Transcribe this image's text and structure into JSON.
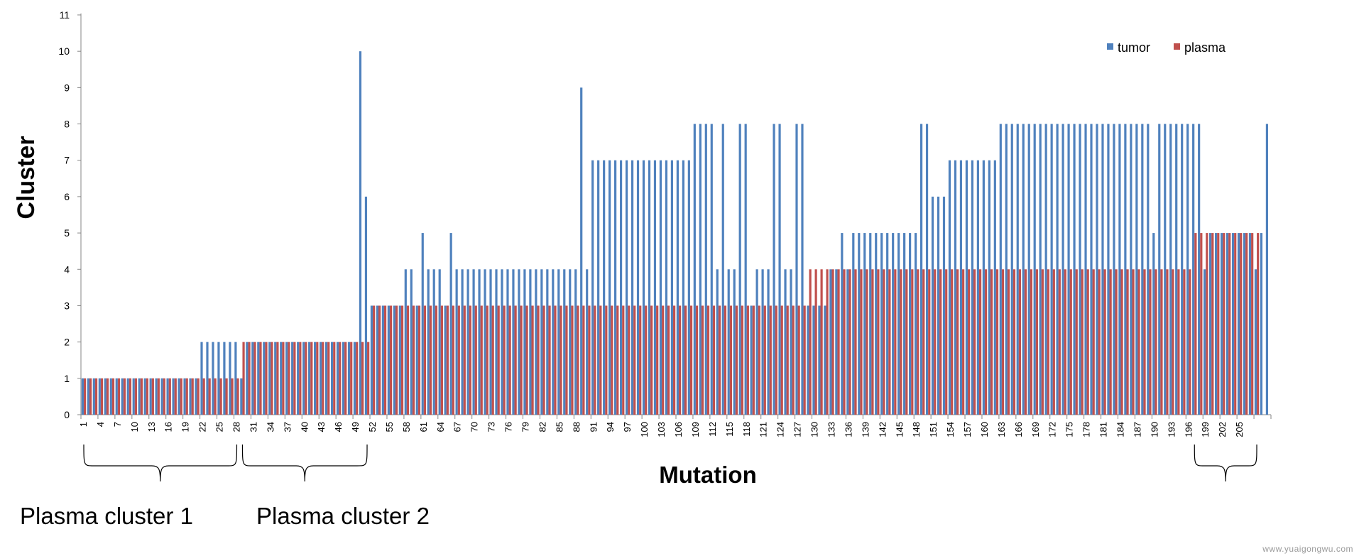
{
  "chart_data": {
    "type": "bar",
    "xlabel": "Mutation",
    "ylabel": "Cluster",
    "ylim": [
      0,
      11
    ],
    "yticks": [
      0,
      1,
      2,
      3,
      4,
      5,
      6,
      7,
      8,
      9,
      10,
      11
    ],
    "xtick_labels": [
      "1",
      "4",
      "7",
      "10",
      "13",
      "16",
      "19",
      "22",
      "25",
      "28",
      "31",
      "34",
      "37",
      "40",
      "43",
      "46",
      "49",
      "52",
      "55",
      "58",
      "61",
      "64",
      "67",
      "70",
      "73",
      "76",
      "79",
      "82",
      "85",
      "88",
      "91",
      "94",
      "97",
      "100",
      "103",
      "106",
      "109",
      "112",
      "115",
      "118",
      "121",
      "124",
      "127",
      "130",
      "133",
      "136",
      "139",
      "142",
      "145",
      "148",
      "151",
      "154",
      "157",
      "160",
      "163",
      "166",
      "169",
      "172",
      "175",
      "178",
      "181",
      "184",
      "187",
      "190",
      "193",
      "196",
      "199",
      "202",
      "205"
    ],
    "legend": {
      "position": "top-right",
      "entries": [
        "tumor",
        "plasma"
      ]
    },
    "colors": {
      "tumor": "#4f81bd",
      "plasma": "#c0504d"
    },
    "series": [
      {
        "name": "tumor",
        "values": [
          1,
          1,
          1,
          1,
          1,
          1,
          1,
          1,
          1,
          1,
          1,
          1,
          1,
          1,
          1,
          1,
          1,
          1,
          1,
          1,
          1,
          2,
          2,
          2,
          2,
          2,
          2,
          2,
          1,
          2,
          2,
          2,
          2,
          2,
          2,
          2,
          2,
          2,
          2,
          2,
          2,
          2,
          2,
          2,
          2,
          2,
          2,
          2,
          2,
          10,
          6,
          3,
          3,
          3,
          3,
          3,
          3,
          4,
          4,
          3,
          5,
          4,
          4,
          4,
          3,
          5,
          4,
          4,
          4,
          4,
          4,
          4,
          4,
          4,
          4,
          4,
          4,
          4,
          4,
          4,
          4,
          4,
          4,
          4,
          4,
          4,
          4,
          4,
          9,
          4,
          7,
          7,
          7,
          7,
          7,
          7,
          7,
          7,
          7,
          7,
          7,
          7,
          7,
          7,
          7,
          7,
          7,
          7,
          8,
          8,
          8,
          8,
          4,
          8,
          4,
          4,
          8,
          8,
          3,
          4,
          4,
          4,
          8,
          8,
          4,
          4,
          8,
          8,
          3,
          3,
          3,
          3,
          4,
          4,
          5,
          4,
          5,
          5,
          5,
          5,
          5,
          5,
          5,
          5,
          5,
          5,
          5,
          5,
          8,
          8,
          6,
          6,
          6,
          7,
          7,
          7,
          7,
          7,
          7,
          7,
          7,
          7,
          8,
          8,
          8,
          8,
          8,
          8,
          8,
          8,
          8,
          8,
          8,
          8,
          8,
          8,
          8,
          8,
          8,
          8,
          8,
          8,
          8,
          8,
          8,
          8,
          8,
          8,
          8,
          5,
          8,
          8,
          8,
          8,
          8,
          8,
          8,
          8,
          4,
          5,
          5,
          5,
          5,
          5,
          5,
          5,
          5,
          4,
          5,
          8
        ]
      },
      {
        "name": "plasma",
        "values": [
          1,
          1,
          1,
          1,
          1,
          1,
          1,
          1,
          1,
          1,
          1,
          1,
          1,
          1,
          1,
          1,
          1,
          1,
          1,
          1,
          1,
          1,
          1,
          1,
          1,
          1,
          1,
          1,
          2,
          2,
          2,
          2,
          2,
          2,
          2,
          2,
          2,
          2,
          2,
          2,
          2,
          2,
          2,
          2,
          2,
          2,
          2,
          2,
          2,
          2,
          2,
          3,
          3,
          3,
          3,
          3,
          3,
          3,
          3,
          3,
          3,
          3,
          3,
          3,
          3,
          3,
          3,
          3,
          3,
          3,
          3,
          3,
          3,
          3,
          3,
          3,
          3,
          3,
          3,
          3,
          3,
          3,
          3,
          3,
          3,
          3,
          3,
          3,
          3,
          3,
          3,
          3,
          3,
          3,
          3,
          3,
          3,
          3,
          3,
          3,
          3,
          3,
          3,
          3,
          3,
          3,
          3,
          3,
          3,
          3,
          3,
          3,
          3,
          3,
          3,
          3,
          3,
          3,
          3,
          3,
          3,
          3,
          3,
          3,
          3,
          3,
          3,
          3,
          4,
          4,
          4,
          4,
          4,
          4,
          4,
          4,
          4,
          4,
          4,
          4,
          4,
          4,
          4,
          4,
          4,
          4,
          4,
          4,
          4,
          4,
          4,
          4,
          4,
          4,
          4,
          4,
          4,
          4,
          4,
          4,
          4,
          4,
          4,
          4,
          4,
          4,
          4,
          4,
          4,
          4,
          4,
          4,
          4,
          4,
          4,
          4,
          4,
          4,
          4,
          4,
          4,
          4,
          4,
          4,
          4,
          4,
          4,
          4,
          4,
          4,
          4,
          4,
          4,
          4,
          4,
          4,
          5,
          5,
          5,
          5,
          5,
          5,
          5,
          5,
          5,
          5,
          5,
          5
        ]
      }
    ],
    "annotations": [
      {
        "label": "Plasma cluster 1",
        "from": 1,
        "to": 28
      },
      {
        "label": "Plasma cluster 2",
        "from": 29,
        "to": 51
      },
      {
        "label": "",
        "from": 197,
        "to": 208
      }
    ]
  },
  "watermark": "www.yuaigongwu.com"
}
